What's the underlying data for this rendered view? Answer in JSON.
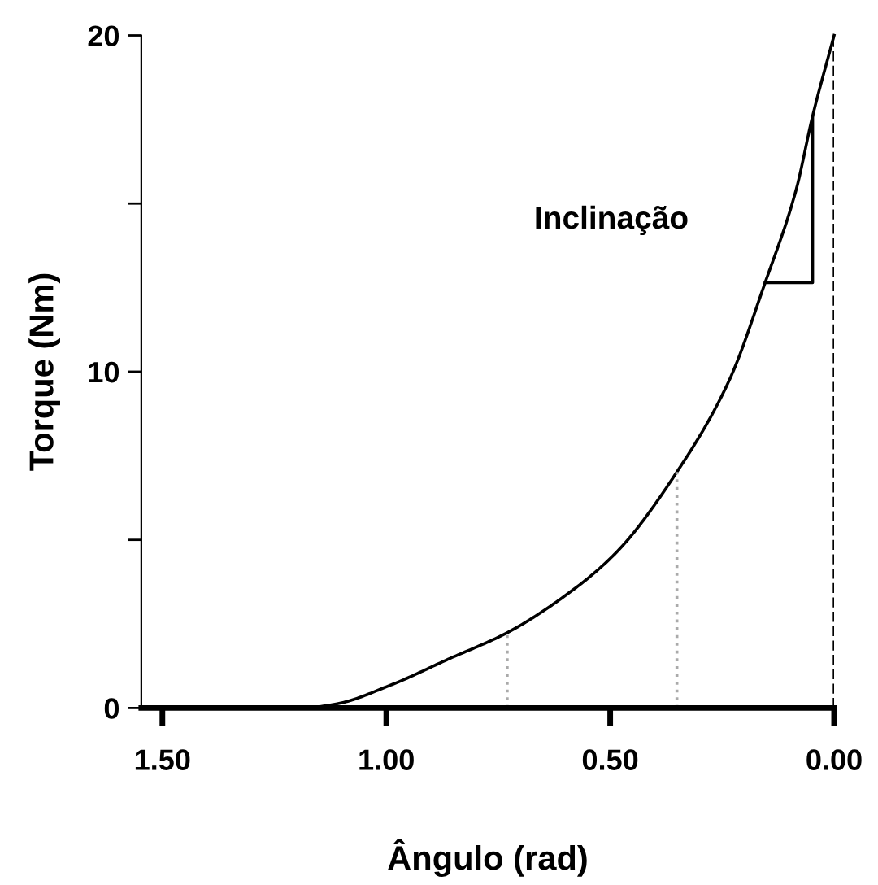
{
  "chart_data": {
    "type": "line",
    "xlabel": "Ângulo (rad)",
    "ylabel": "Torque (Nm)",
    "xlim": [
      1.547,
      0
    ],
    "ylim": [
      0,
      20
    ],
    "xticks": [
      {
        "value": 1.5,
        "label": "1.50"
      },
      {
        "value": 1.0,
        "label": "1.00"
      },
      {
        "value": 0.5,
        "label": "0.50"
      },
      {
        "value": 0,
        "label": "0.00"
      }
    ],
    "yticks": [
      0,
      {
        "value": 5,
        "label": null
      },
      10,
      {
        "value": 15,
        "label": null
      },
      20
    ],
    "grid": false,
    "marker": "none",
    "series": [
      {
        "color": "#000000",
        "line_style": "solid",
        "x": [
          1.547,
          1.187,
          1.112,
          0.987,
          0.862,
          0.73,
          0.611,
          0.486,
          0.351,
          0.235,
          0.154,
          0.085,
          0.048,
          0
        ],
        "values": [
          0,
          0,
          0.12,
          0.7,
          1.45,
          2.24,
          3.24,
          4.63,
          7.02,
          9.72,
          12.65,
          15.4,
          17.6,
          20
        ]
      },
      {
        "color": "#aaaaaa",
        "line_style": "dotted",
        "x": [
          0.73,
          0.73
        ],
        "values": [
          0,
          2.24
        ]
      },
      {
        "color": "#aaaaaa",
        "line_style": "dotted",
        "x": [
          0.351,
          0.351
        ],
        "values": [
          0,
          7.02
        ]
      },
      {
        "color": "#000000",
        "line_style": "solid",
        "x": [
          0.154,
          0.048,
          0.048
        ],
        "values": [
          12.65,
          12.65,
          17.6
        ]
      }
    ],
    "ref_lines": [
      {
        "axis": "x",
        "value": 0,
        "label": null,
        "color": "#000000",
        "line_style": "dashed"
      }
    ],
    "annotations": [
      "Inclinação"
    ]
  }
}
